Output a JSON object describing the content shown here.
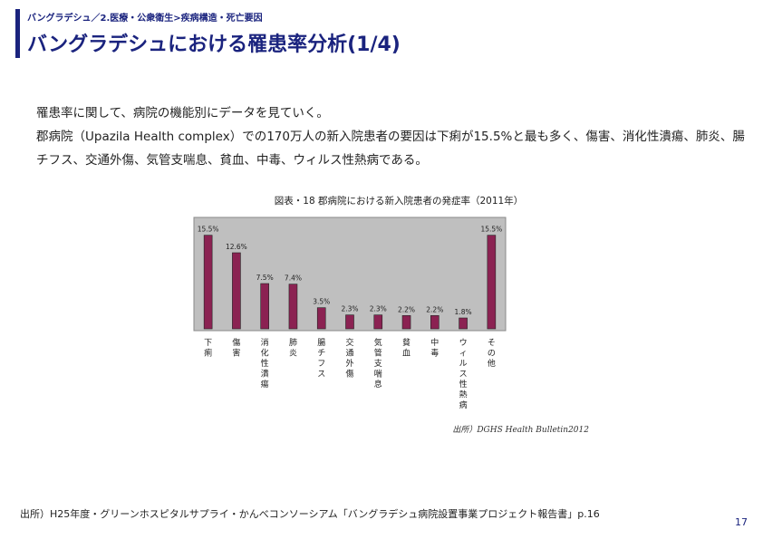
{
  "header": {
    "breadcrumb": "バングラデシュ／2.医療・公衆衛生>疾病構造・死亡要因",
    "title": "バングラデシュにおける罹患率分析(1/4)"
  },
  "body": {
    "paragraph1": "罹患率に関して、病院の機能別にデータを見ていく。",
    "paragraph2": "郡病院（Upazila Health complex）での170万人の新入院患者の要因は下痢が15.5%と最も多く、傷害、消化性潰瘍、肺炎、腸チフス、交通外傷、気管支喘息、貧血、中毒、ウィルス性熱病である。"
  },
  "chart_data": {
    "type": "bar",
    "title": "図表・18 郡病院における新入院患者の発症率（2011年）",
    "categories": [
      "下痢",
      "傷害",
      "消化性潰瘍",
      "肺炎",
      "腸チフス",
      "交通外傷",
      "気管支喘息",
      "貧血",
      "中毒",
      "ウィルス性熱病",
      "その他"
    ],
    "values": [
      15.5,
      12.6,
      7.5,
      7.4,
      3.5,
      2.3,
      2.3,
      2.2,
      2.2,
      1.8,
      15.5
    ],
    "value_labels": [
      "15.5%",
      "12.6%",
      "7.5%",
      "7.4%",
      "3.5%",
      "2.3%",
      "2.3%",
      "2.2%",
      "2.2%",
      "1.8%",
      "15.5%"
    ],
    "ylim": [
      0,
      16.5
    ],
    "source": "出所）DGHS Health Bulletin2012",
    "bar_color": "#8b2252",
    "plot_bg": "#bfbfbf"
  },
  "footer": {
    "source": "出所）H25年度・グリーンホスピタルサプライ・かんべコンソーシアム「バングラデシュ病院設置事業プロジェクト報告書」p.16",
    "page_number": "17"
  }
}
